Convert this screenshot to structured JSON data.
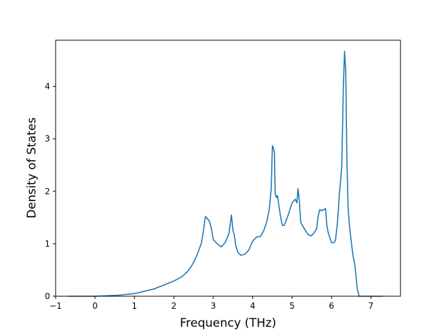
{
  "chart_data": {
    "type": "line",
    "title": "",
    "xlabel": "Frequency (THz)",
    "ylabel": "Density of States",
    "xlim": [
      -1.0,
      7.75
    ],
    "ylim": [
      0,
      4.88
    ],
    "x_ticks": [
      -1,
      0,
      1,
      2,
      3,
      4,
      5,
      6,
      7
    ],
    "x_tick_labels": [
      "−1",
      "0",
      "1",
      "2",
      "3",
      "4",
      "5",
      "6",
      "7"
    ],
    "y_ticks": [
      0,
      1,
      2,
      3,
      4
    ],
    "y_tick_labels": [
      "0",
      "1",
      "2",
      "3",
      "4"
    ],
    "grid": false,
    "legend": "none",
    "series": [
      {
        "color": "#1f77b4",
        "x": [
          -0.68,
          -0.3,
          0.0,
          0.3,
          0.6,
          1.0,
          1.5,
          2.0,
          2.2,
          2.35,
          2.45,
          2.55,
          2.62,
          2.7,
          2.75,
          2.8,
          2.85,
          2.9,
          2.95,
          3.0,
          3.1,
          3.2,
          3.3,
          3.4,
          3.46,
          3.5,
          3.53,
          3.57,
          3.62,
          3.7,
          3.8,
          3.9,
          4.0,
          4.1,
          4.2,
          4.28,
          4.35,
          4.42,
          4.47,
          4.5,
          4.52,
          4.55,
          4.57,
          4.6,
          4.63,
          4.66,
          4.7,
          4.75,
          4.8,
          4.9,
          5.0,
          5.08,
          5.12,
          5.15,
          5.18,
          5.22,
          5.3,
          5.4,
          5.48,
          5.55,
          5.62,
          5.66,
          5.7,
          5.75,
          5.85,
          5.88,
          5.92,
          6.0,
          6.06,
          6.1,
          6.15,
          6.2,
          6.26,
          6.3,
          6.33,
          6.36,
          6.39,
          6.42,
          6.46,
          6.5,
          6.54,
          6.6,
          6.65,
          6.7,
          6.8,
          7.0,
          7.3
        ],
        "y": [
          0.0,
          0.0,
          0.0,
          0.01,
          0.02,
          0.05,
          0.14,
          0.29,
          0.37,
          0.47,
          0.58,
          0.72,
          0.85,
          1.02,
          1.25,
          1.52,
          1.48,
          1.43,
          1.3,
          1.08,
          1.0,
          0.94,
          1.02,
          1.2,
          1.55,
          1.25,
          1.18,
          0.97,
          0.84,
          0.78,
          0.8,
          0.88,
          1.05,
          1.13,
          1.14,
          1.25,
          1.4,
          1.65,
          2.05,
          2.87,
          2.83,
          2.75,
          1.95,
          1.88,
          1.92,
          1.75,
          1.55,
          1.35,
          1.35,
          1.55,
          1.78,
          1.85,
          1.78,
          2.05,
          1.85,
          1.4,
          1.3,
          1.18,
          1.15,
          1.2,
          1.28,
          1.52,
          1.65,
          1.63,
          1.67,
          1.35,
          1.2,
          1.02,
          1.02,
          1.07,
          1.4,
          1.95,
          2.48,
          4.0,
          4.67,
          4.3,
          2.6,
          1.7,
          1.3,
          1.05,
          0.8,
          0.55,
          0.15,
          0.0,
          0.0,
          0.0,
          0.0
        ]
      }
    ]
  }
}
